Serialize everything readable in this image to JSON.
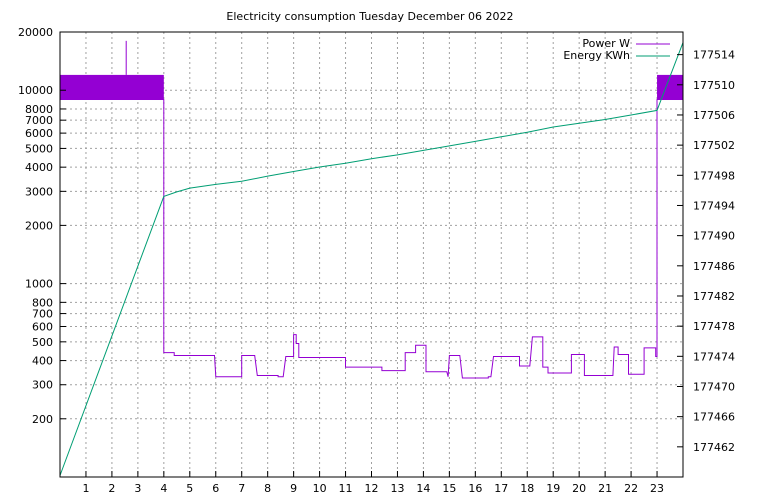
{
  "chart_data": {
    "type": "line",
    "title": "Electricity consumption Tuesday December 06 2022",
    "x_axis": {
      "range": [
        0,
        24
      ],
      "ticks": [
        1,
        2,
        3,
        4,
        5,
        6,
        7,
        8,
        9,
        10,
        11,
        12,
        13,
        14,
        15,
        16,
        17,
        18,
        19,
        20,
        21,
        22,
        23
      ],
      "grid": true
    },
    "y_left": {
      "scale": "log",
      "range": [
        100,
        20000
      ],
      "ticks": [
        200,
        300,
        400,
        500,
        600,
        700,
        800,
        1000,
        2000,
        3000,
        4000,
        5000,
        6000,
        7000,
        8000,
        10000,
        20000
      ],
      "grid": true
    },
    "y_right": {
      "scale": "linear",
      "range": [
        177458,
        177517
      ],
      "ticks": [
        177462,
        177466,
        177470,
        177474,
        177478,
        177482,
        177486,
        177490,
        177494,
        177498,
        177502,
        177506,
        177510,
        177514
      ]
    },
    "legend": {
      "position": "top-right"
    },
    "series": [
      {
        "name": "Power W",
        "axis": "left",
        "color": "#9400d3",
        "band_segments": [
          {
            "x_start": 0,
            "x_end": 4.0,
            "low": 8900,
            "high": 12000
          },
          {
            "x_start": 23.0,
            "x_end": 24.0,
            "low": 8900,
            "high": 12000
          }
        ],
        "spike": {
          "x": 2.55,
          "value": 18000
        },
        "points": [
          [
            4.0,
            9000
          ],
          [
            4.0,
            440
          ],
          [
            4.4,
            440
          ],
          [
            4.4,
            425
          ],
          [
            5.95,
            425
          ],
          [
            6.0,
            330
          ],
          [
            7.0,
            330
          ],
          [
            7.0,
            425
          ],
          [
            7.5,
            425
          ],
          [
            7.6,
            335
          ],
          [
            8.4,
            335
          ],
          [
            8.4,
            330
          ],
          [
            8.6,
            330
          ],
          [
            8.7,
            420
          ],
          [
            9.0,
            420
          ],
          [
            9.0,
            545
          ],
          [
            9.1,
            545
          ],
          [
            9.1,
            490
          ],
          [
            9.2,
            490
          ],
          [
            9.2,
            415
          ],
          [
            11.0,
            415
          ],
          [
            11.0,
            370
          ],
          [
            12.4,
            370
          ],
          [
            12.4,
            355
          ],
          [
            13.3,
            355
          ],
          [
            13.3,
            440
          ],
          [
            13.7,
            440
          ],
          [
            13.7,
            480
          ],
          [
            14.1,
            480
          ],
          [
            14.1,
            350
          ],
          [
            14.9,
            350
          ],
          [
            14.95,
            330
          ],
          [
            15.0,
            425
          ],
          [
            15.4,
            425
          ],
          [
            15.5,
            325
          ],
          [
            16.5,
            325
          ],
          [
            16.5,
            330
          ],
          [
            16.6,
            330
          ],
          [
            16.7,
            420
          ],
          [
            17.7,
            420
          ],
          [
            17.7,
            375
          ],
          [
            18.1,
            375
          ],
          [
            18.2,
            530
          ],
          [
            18.6,
            530
          ],
          [
            18.6,
            370
          ],
          [
            18.8,
            370
          ],
          [
            18.8,
            345
          ],
          [
            19.7,
            345
          ],
          [
            19.7,
            430
          ],
          [
            20.2,
            430
          ],
          [
            20.2,
            335
          ],
          [
            21.3,
            335
          ],
          [
            21.35,
            470
          ],
          [
            21.5,
            470
          ],
          [
            21.5,
            430
          ],
          [
            21.9,
            430
          ],
          [
            21.9,
            340
          ],
          [
            22.5,
            340
          ],
          [
            22.5,
            465
          ],
          [
            22.95,
            465
          ],
          [
            22.95,
            420
          ],
          [
            23.0,
            420
          ],
          [
            23.0,
            9000
          ]
        ]
      },
      {
        "name": "Energy KWh",
        "axis": "right",
        "color": "#009e73",
        "points": [
          [
            0,
            177458.2
          ],
          [
            4.0,
            177495.2
          ],
          [
            4.5,
            177495.8
          ],
          [
            5.0,
            177496.3
          ],
          [
            6.0,
            177496.8
          ],
          [
            7.0,
            177497.2
          ],
          [
            8.0,
            177497.9
          ],
          [
            9.0,
            177498.5
          ],
          [
            10.0,
            177499.1
          ],
          [
            11.0,
            177499.6
          ],
          [
            12.0,
            177500.2
          ],
          [
            13.0,
            177500.7
          ],
          [
            14.0,
            177501.3
          ],
          [
            15.0,
            177501.9
          ],
          [
            16.0,
            177502.5
          ],
          [
            17.0,
            177503.1
          ],
          [
            18.0,
            177503.7
          ],
          [
            19.0,
            177504.4
          ],
          [
            20.0,
            177504.9
          ],
          [
            21.0,
            177505.4
          ],
          [
            22.0,
            177506.0
          ],
          [
            23.0,
            177506.6
          ],
          [
            24.0,
            177515.6
          ]
        ]
      }
    ]
  }
}
